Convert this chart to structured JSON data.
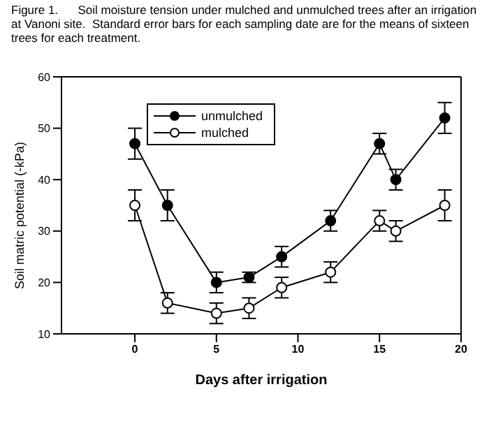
{
  "chart_data": {
    "type": "line",
    "title": "Figure 1.      Soil moisture tension under mulched and unmulched trees after an irrigation at Vanoni site.  Standard error bars for each sampling date are for the means of sixteen trees for each treatment.",
    "xlabel": "Days after irrigation",
    "ylabel": "Soil matric potential (-kPa)",
    "x": [
      0,
      2,
      5,
      7,
      9,
      12,
      15,
      16,
      19
    ],
    "series": [
      {
        "name": "unmulched",
        "color": "#000000",
        "values": [
          47,
          35,
          20,
          21,
          25,
          32,
          47,
          40,
          52
        ],
        "errors": [
          3,
          3,
          2,
          1,
          2,
          2,
          2,
          2,
          3
        ]
      },
      {
        "name": "mulched",
        "color": "#000000",
        "values": [
          35,
          16,
          14,
          15,
          19,
          22,
          32,
          30,
          35
        ],
        "errors": [
          3,
          2,
          2,
          2,
          2,
          2,
          2,
          2,
          3
        ]
      }
    ],
    "xlim": [
      -4.5,
      20
    ],
    "xticks": [
      0,
      5,
      10,
      15,
      20
    ],
    "ylim": [
      10,
      60
    ],
    "yticks": [
      10,
      20,
      30,
      40,
      50,
      60
    ],
    "grid": false,
    "legend": "top left",
    "marker": "circle",
    "line_style": "solid"
  }
}
